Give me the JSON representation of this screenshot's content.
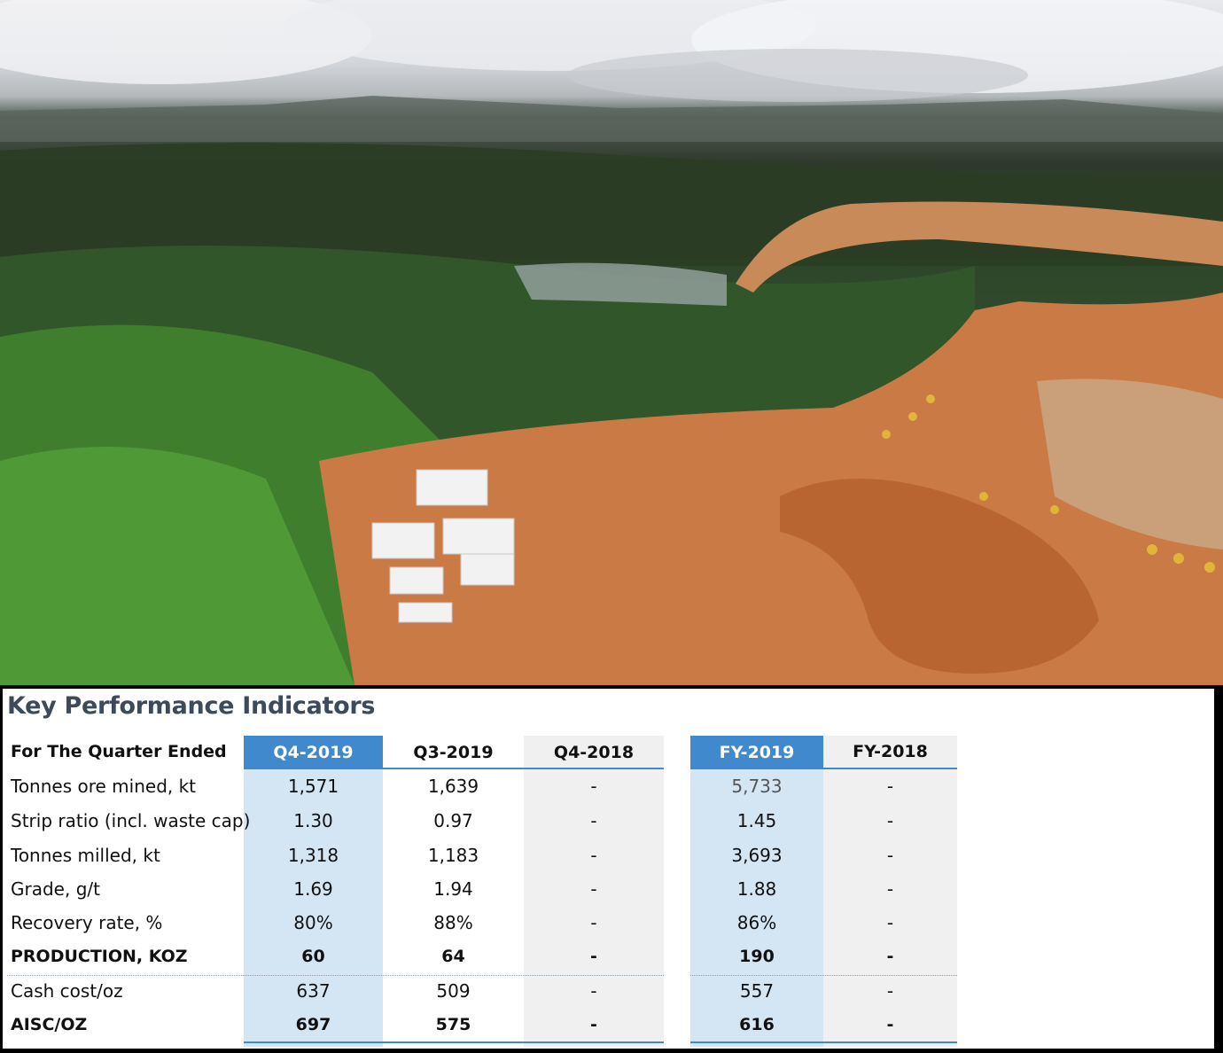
{
  "photo": {
    "description_icon": "aerial-mine-site-photo"
  },
  "kpi": {
    "title": "Key Performance Indicators",
    "header_label": "For The Quarter Ended",
    "quarter_columns": [
      "Q4-2019",
      "Q3-2019",
      "Q4-2018"
    ],
    "year_columns": [
      "FY-2019",
      "FY-2018"
    ],
    "rows": [
      {
        "label": "Tonnes ore mined, kt",
        "q4_2019": "1,571",
        "q3_2019": "1,639",
        "q4_2018": "-",
        "fy_2019": "5,733",
        "fy_2018": "-"
      },
      {
        "label": "Strip ratio (incl. waste cap)",
        "q4_2019": "1.30",
        "q3_2019": "0.97",
        "q4_2018": "-",
        "fy_2019": "1.45",
        "fy_2018": "-"
      },
      {
        "label": "Tonnes milled, kt",
        "q4_2019": "1,318",
        "q3_2019": "1,183",
        "q4_2018": "-",
        "fy_2019": "3,693",
        "fy_2018": "-"
      },
      {
        "label": "Grade, g/t",
        "q4_2019": "1.69",
        "q3_2019": "1.94",
        "q4_2018": "-",
        "fy_2019": "1.88",
        "fy_2018": "-"
      },
      {
        "label": "Recovery rate, %",
        "q4_2019": "80%",
        "q3_2019": "88%",
        "q4_2018": "-",
        "fy_2019": "86%",
        "fy_2018": "-"
      },
      {
        "label": "PRODUCTION, KOZ",
        "q4_2019": "60",
        "q3_2019": "64",
        "q4_2018": "-",
        "fy_2019": "190",
        "fy_2018": "-"
      },
      {
        "label": "Cash cost/oz",
        "q4_2019": "637",
        "q3_2019": "509",
        "q4_2018": "-",
        "fy_2019": "557",
        "fy_2018": "-"
      },
      {
        "label": "AISC/OZ",
        "q4_2019": "697",
        "q3_2019": "575",
        "q4_2018": "-",
        "fy_2019": "616",
        "fy_2018": "-"
      }
    ],
    "colors": {
      "header_blue": "#3f89cc",
      "column_blue": "#d4e5f4",
      "column_gray": "#f0f0f0",
      "title": "#3d4a5a"
    }
  }
}
